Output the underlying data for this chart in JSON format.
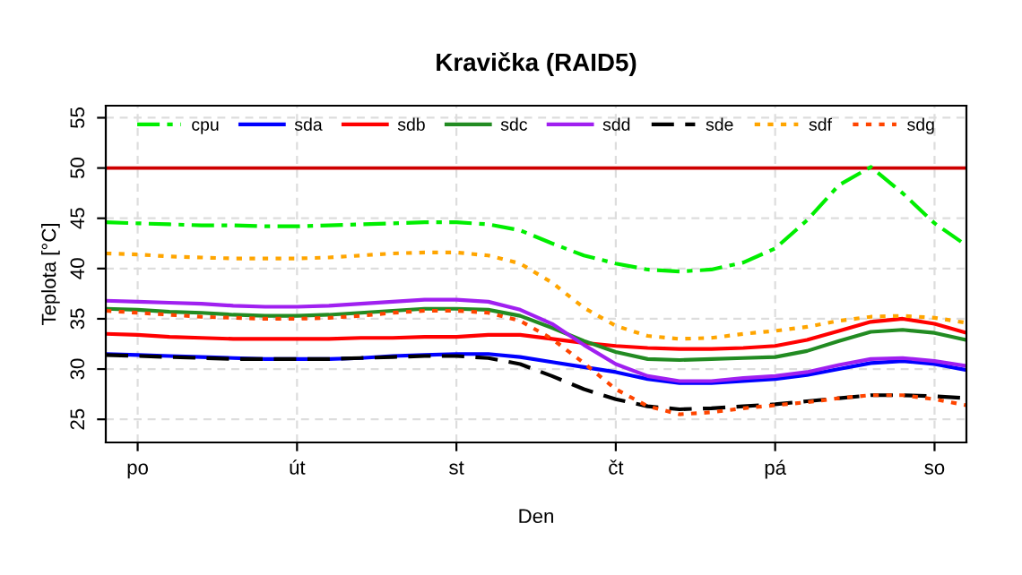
{
  "chart_data": {
    "type": "line",
    "title": "Kravička (RAID5)",
    "xlabel": "Den",
    "ylabel": "Teplota [°C]",
    "categories": [
      null,
      "po",
      null,
      null,
      null,
      null,
      "út",
      null,
      null,
      null,
      null,
      "st",
      null,
      null,
      null,
      null,
      "čt",
      null,
      null,
      null,
      null,
      "pá",
      null,
      null,
      null,
      null,
      "so",
      null
    ],
    "ylim": [
      22.7,
      56.2
    ],
    "yticks": [
      25,
      30,
      35,
      40,
      45,
      50,
      55
    ],
    "grid": true,
    "legend": "top",
    "marker": "none",
    "ref_lines": [
      {
        "axis": "y",
        "value": 50,
        "color": "#cd0000",
        "line_style": "solid"
      }
    ],
    "series": [
      {
        "name": "cpu",
        "color": "#00ee00",
        "line_style": "dashdot",
        "values": [
          44.6,
          44.5,
          44.4,
          44.3,
          44.3,
          44.2,
          44.2,
          44.3,
          44.4,
          44.5,
          44.6,
          44.6,
          44.4,
          43.8,
          42.5,
          41.3,
          40.5,
          39.9,
          39.7,
          39.9,
          40.6,
          42.0,
          44.8,
          48.3,
          50.1,
          47.5,
          44.5,
          42.3
        ]
      },
      {
        "name": "sda",
        "color": "#0000ff",
        "line_style": "solid",
        "values": [
          31.5,
          31.4,
          31.3,
          31.2,
          31.1,
          31.0,
          31.0,
          31.0,
          31.1,
          31.3,
          31.4,
          31.5,
          31.5,
          31.2,
          30.7,
          30.2,
          29.7,
          29.0,
          28.6,
          28.6,
          28.8,
          29.0,
          29.4,
          30.0,
          30.6,
          30.8,
          30.5,
          29.9
        ]
      },
      {
        "name": "sdb",
        "color": "#ff0000",
        "line_style": "solid",
        "values": [
          33.5,
          33.4,
          33.2,
          33.1,
          33.0,
          33.0,
          33.0,
          33.0,
          33.1,
          33.1,
          33.2,
          33.2,
          33.4,
          33.4,
          33.0,
          32.6,
          32.3,
          32.1,
          32.0,
          32.0,
          32.1,
          32.3,
          32.9,
          33.8,
          34.7,
          35.0,
          34.5,
          33.6
        ]
      },
      {
        "name": "sdc",
        "color": "#228b22",
        "line_style": "solid",
        "values": [
          36.0,
          35.9,
          35.7,
          35.6,
          35.4,
          35.3,
          35.3,
          35.4,
          35.6,
          35.8,
          36.0,
          36.0,
          35.9,
          35.3,
          34.1,
          32.8,
          31.7,
          31.0,
          30.9,
          31.0,
          31.1,
          31.2,
          31.8,
          32.8,
          33.7,
          33.9,
          33.6,
          32.9
        ]
      },
      {
        "name": "sdd",
        "color": "#a020f0",
        "line_style": "solid",
        "values": [
          36.8,
          36.7,
          36.6,
          36.5,
          36.3,
          36.2,
          36.2,
          36.3,
          36.5,
          36.7,
          36.9,
          36.9,
          36.7,
          35.9,
          34.5,
          32.4,
          30.5,
          29.3,
          28.8,
          28.8,
          29.1,
          29.3,
          29.7,
          30.4,
          31.0,
          31.1,
          30.8,
          30.3
        ]
      },
      {
        "name": "sde",
        "color": "#000000",
        "line_style": "dashed",
        "values": [
          31.4,
          31.3,
          31.2,
          31.1,
          31.0,
          31.0,
          31.0,
          31.0,
          31.1,
          31.2,
          31.3,
          31.3,
          31.1,
          30.5,
          29.3,
          28.0,
          27.0,
          26.3,
          26.0,
          26.1,
          26.3,
          26.5,
          26.8,
          27.1,
          27.4,
          27.4,
          27.3,
          27.1
        ]
      },
      {
        "name": "sdf",
        "color": "#ffa500",
        "line_style": "dotted",
        "values": [
          41.5,
          41.4,
          41.2,
          41.1,
          41.0,
          41.0,
          41.0,
          41.1,
          41.3,
          41.5,
          41.6,
          41.6,
          41.3,
          40.5,
          38.6,
          36.1,
          34.3,
          33.3,
          33.0,
          33.1,
          33.5,
          33.8,
          34.2,
          34.8,
          35.2,
          35.3,
          35.1,
          34.6
        ]
      },
      {
        "name": "sdg",
        "color": "#ff4500",
        "line_style": "dotted",
        "values": [
          35.8,
          35.6,
          35.4,
          35.2,
          35.1,
          35.0,
          35.0,
          35.1,
          35.3,
          35.6,
          35.8,
          35.8,
          35.6,
          34.8,
          33.0,
          30.6,
          28.0,
          26.3,
          25.5,
          25.7,
          26.1,
          26.4,
          26.7,
          27.1,
          27.4,
          27.4,
          27.0,
          26.4
        ]
      }
    ]
  }
}
